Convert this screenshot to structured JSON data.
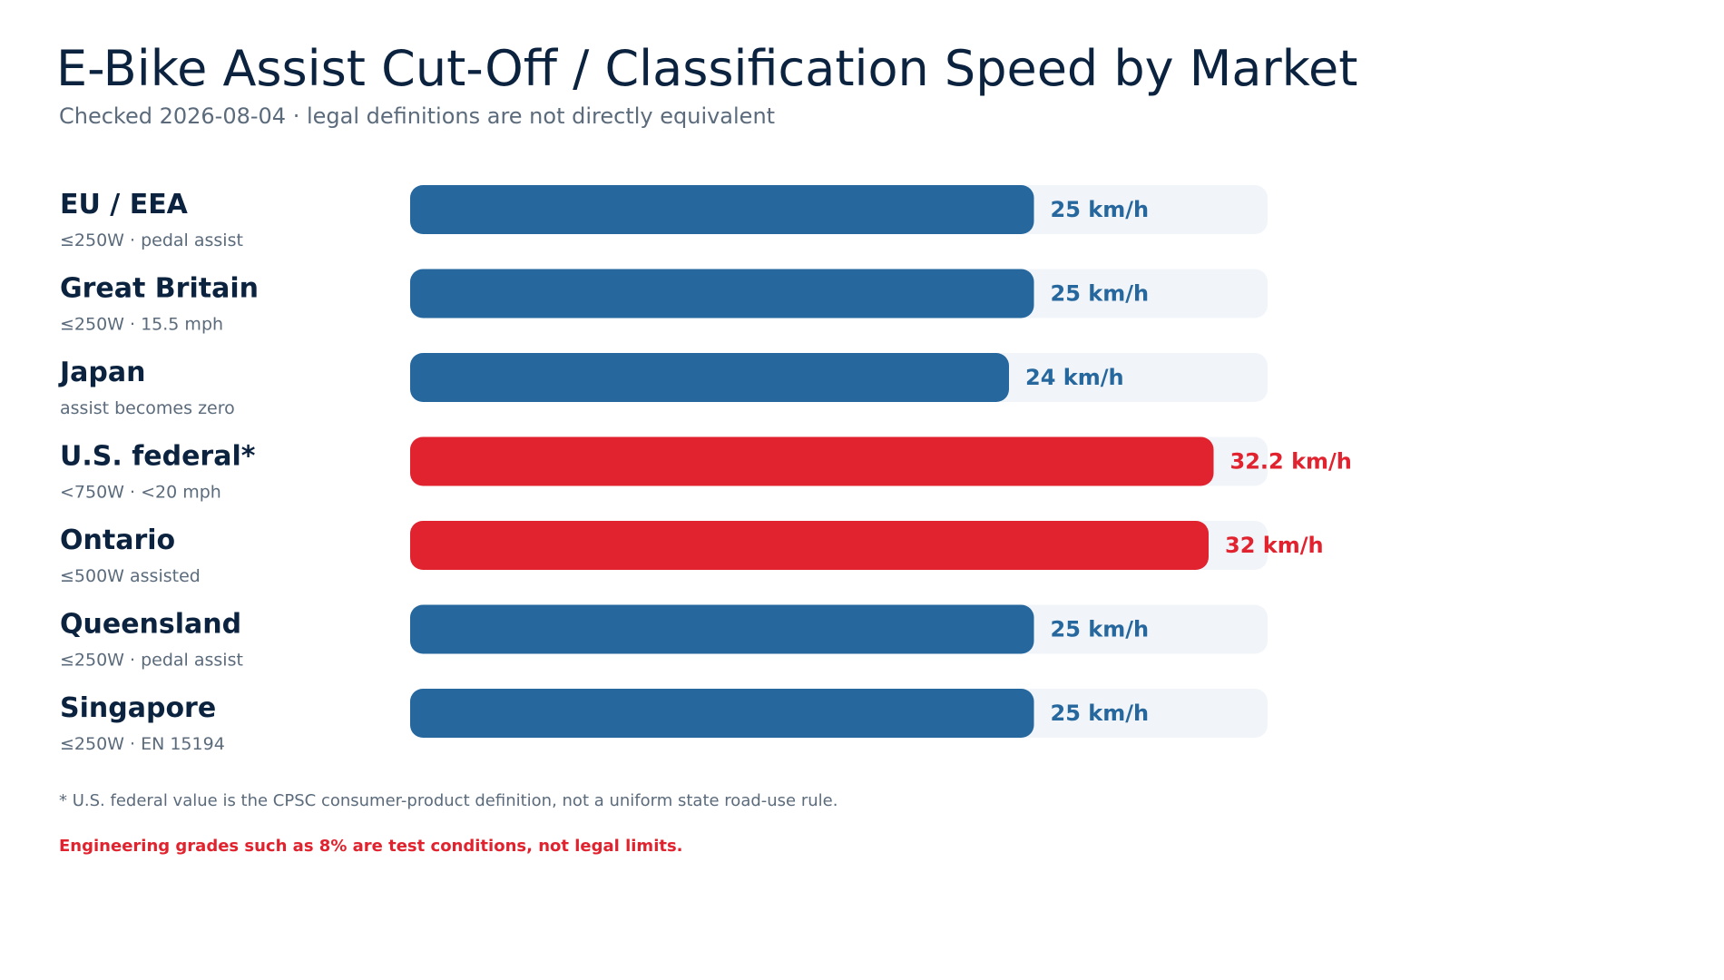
{
  "chart_data": {
    "type": "bar",
    "orientation": "horizontal",
    "title": "E-Bike Assist Cut-Off / Classification Speed by Market",
    "subtitle": "Checked 2026-08-04 · legal definitions are not directly equivalent",
    "unit": "km/h",
    "xlim": [
      0,
      35
    ],
    "grid": false,
    "legend": "none",
    "colors": {
      "default": "#26679e",
      "highlight": "#e0232e",
      "track": "#f1f5f9",
      "category": "#0c2340",
      "note": "#5b6b7c"
    },
    "categories": [
      "EU / EEA",
      "Great Britain",
      "Japan",
      "U.S. federal*",
      "Ontario",
      "Queensland",
      "Singapore"
    ],
    "notes": [
      "≤250W · pedal assist",
      "≤250W · 15.5 mph",
      "assist becomes zero",
      "<750W · <20 mph",
      "≤500W assisted",
      "≤250W · pedal assist",
      "≤250W · EN 15194"
    ],
    "values": [
      25,
      25,
      24,
      32.2,
      32,
      25,
      25
    ],
    "value_labels": [
      "25 km/h",
      "25 km/h",
      "24 km/h",
      "32.2 km/h",
      "32 km/h",
      "25 km/h",
      "25 km/h"
    ],
    "highlighted": [
      false,
      false,
      false,
      true,
      true,
      false,
      false
    ]
  },
  "footnote": "* U.S. federal value is the CPSC consumer-product definition, not a uniform state road-use rule.",
  "warning": "Engineering grades such as 8% are test conditions, not legal limits."
}
